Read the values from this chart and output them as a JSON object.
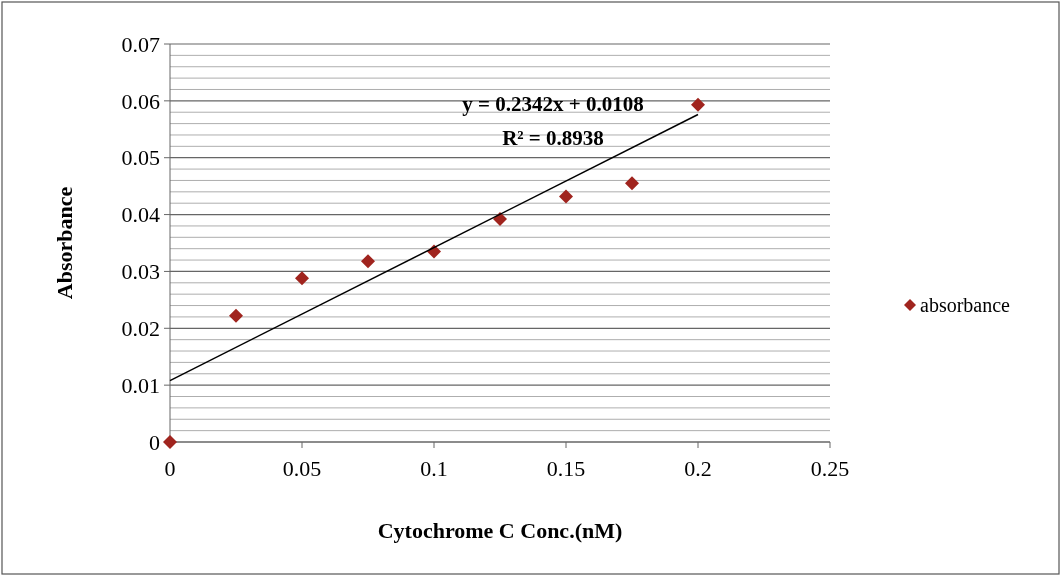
{
  "chart_data": {
    "type": "scatter",
    "xlabel": "Cytochrome C Conc.(nM)",
    "ylabel": "Absorbance",
    "x": [
      0,
      0.025,
      0.05,
      0.075,
      0.1,
      0.125,
      0.15,
      0.175,
      0.2
    ],
    "series": [
      {
        "name": "absorbance",
        "color": "#a0241e",
        "marker": "diamond",
        "values": [
          0,
          0.0222,
          0.0288,
          0.0318,
          0.0335,
          0.0392,
          0.0432,
          0.0455,
          0.0593
        ]
      },
      {
        "type": "line",
        "color": "#000000",
        "x": [
          0,
          0.2
        ],
        "values": [
          0.0108,
          0.0576
        ]
      }
    ],
    "annotations": [
      "y = 0.2342x + 0.0108",
      "R² = 0.8938"
    ],
    "xlim": [
      0,
      0.25
    ],
    "xticks": [
      0,
      0.05,
      0.1,
      0.15,
      0.2,
      0.25
    ],
    "ylim": [
      0,
      0.07
    ],
    "yticks": [
      0,
      {
        "value": 0.002,
        "label": null
      },
      {
        "value": 0.004,
        "label": null
      },
      {
        "value": 0.006,
        "label": null
      },
      {
        "value": 0.008,
        "label": null
      },
      0.01,
      {
        "value": 0.012,
        "label": null
      },
      {
        "value": 0.014,
        "label": null
      },
      {
        "value": 0.016,
        "label": null
      },
      {
        "value": 0.018,
        "label": null
      },
      0.02,
      {
        "value": 0.022,
        "label": null
      },
      {
        "value": 0.024,
        "label": null
      },
      {
        "value": 0.026,
        "label": null
      },
      {
        "value": 0.028,
        "label": null
      },
      0.03,
      {
        "value": 0.032,
        "label": null
      },
      {
        "value": 0.034,
        "label": null
      },
      {
        "value": 0.036,
        "label": null
      },
      {
        "value": 0.038,
        "label": null
      },
      0.04,
      {
        "value": 0.042,
        "label": null
      },
      {
        "value": 0.044,
        "label": null
      },
      {
        "value": 0.046,
        "label": null
      },
      {
        "value": 0.048,
        "label": null
      },
      0.05,
      {
        "value": 0.052,
        "label": null
      },
      {
        "value": 0.054,
        "label": null
      },
      {
        "value": 0.056,
        "label": null
      },
      {
        "value": 0.058,
        "label": null
      },
      0.06,
      {
        "value": 0.062,
        "label": null
      },
      {
        "value": 0.064,
        "label": null
      },
      {
        "value": 0.066,
        "label": null
      },
      {
        "value": 0.068,
        "label": null
      },
      0.07
    ],
    "grid": "y",
    "legend": "right"
  }
}
